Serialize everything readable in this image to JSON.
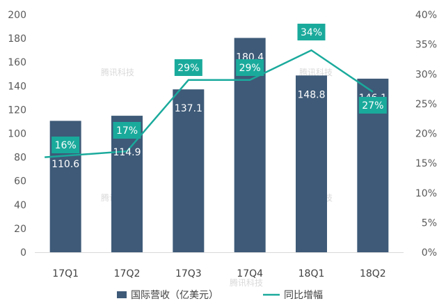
{
  "chart_data": {
    "type": "bar",
    "categories": [
      "17Q1",
      "17Q2",
      "17Q3",
      "17Q4",
      "18Q1",
      "18Q2"
    ],
    "series": [
      {
        "name": "国际营收（亿美元）",
        "type": "bar",
        "axis": "left",
        "values": [
          110.6,
          114.9,
          137.1,
          180.4,
          148.8,
          146.1
        ],
        "labels": [
          "110.6",
          "114.9",
          "137.1",
          "180.4",
          "148.8",
          "146.1"
        ],
        "color": "#3e5a78"
      },
      {
        "name": "同比增幅",
        "type": "line",
        "axis": "right",
        "values": [
          16,
          17,
          29,
          29,
          34,
          27
        ],
        "labels": [
          "16%",
          "17%",
          "29%",
          "29%",
          "34%",
          "27%"
        ],
        "color": "#1aaa9c"
      }
    ],
    "y_left": {
      "ylim": [
        0,
        200
      ],
      "ticks": [
        "0",
        "20",
        "40",
        "60",
        "80",
        "100",
        "120",
        "140",
        "160",
        "180",
        "200"
      ]
    },
    "y_right": {
      "ylim": [
        0,
        40
      ],
      "ticks": [
        "0%",
        "5%",
        "10%",
        "15%",
        "20%",
        "25%",
        "30%",
        "35%",
        "40%"
      ]
    },
    "grid": false,
    "legend_position": "bottom-center",
    "watermark": "腾讯科技"
  }
}
